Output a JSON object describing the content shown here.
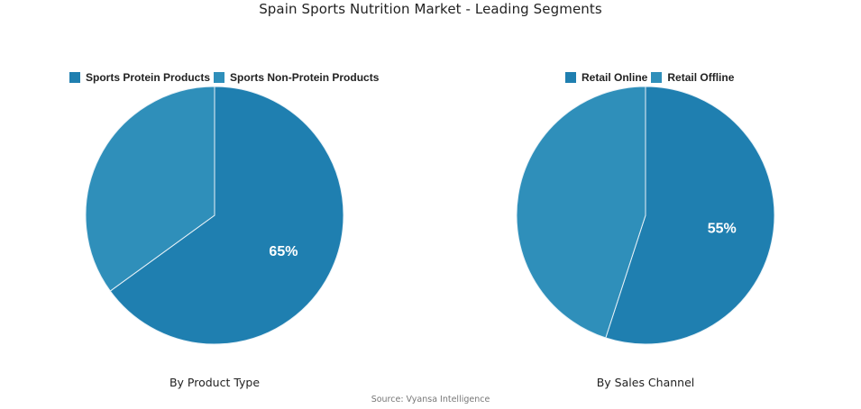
{
  "title": "Spain Sports Nutrition Market - Leading Segments",
  "source": "Source: Vyansa Intelligence",
  "colors": {
    "primary": "#1f7fb0",
    "secondary": "#2f8fba",
    "divider": "#e8f2f8"
  },
  "charts": [
    {
      "caption": "By Product Type",
      "legend": [
        "Sports Protein Products",
        "Sports Non-Protein Products"
      ],
      "label": "65%"
    },
    {
      "caption": "By Sales Channel",
      "legend": [
        "Retail Online",
        "Retail Offline"
      ],
      "label": "55%"
    }
  ],
  "chart_data": [
    {
      "type": "pie",
      "title": "By Product Type",
      "categories": [
        "Sports Protein Products",
        "Sports Non-Protein Products"
      ],
      "values": [
        65,
        35
      ],
      "data_labels": [
        "65%",
        ""
      ],
      "legend_position": "top",
      "colors": [
        "#1f7fb0",
        "#2f8fba"
      ]
    },
    {
      "type": "pie",
      "title": "By Sales Channel",
      "categories": [
        "Retail Online",
        "Retail Offline"
      ],
      "values": [
        55,
        45
      ],
      "data_labels": [
        "55%",
        ""
      ],
      "legend_position": "top",
      "colors": [
        "#1f7fb0",
        "#2f8fba"
      ]
    }
  ]
}
